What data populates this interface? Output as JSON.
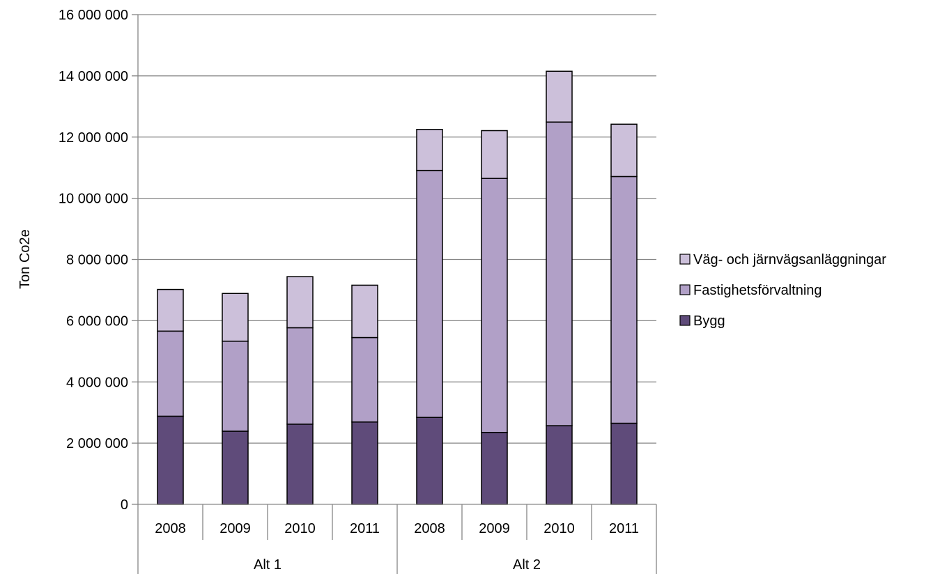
{
  "chart_data": {
    "type": "bar",
    "stacked": true,
    "ylabel": "Ton Co2e",
    "xlabel": "",
    "ylim": [
      0,
      16000000
    ],
    "yticks": [
      0,
      2000000,
      4000000,
      6000000,
      8000000,
      10000000,
      12000000,
      14000000,
      16000000
    ],
    "ytick_labels": [
      "0",
      "2 000 000",
      "4 000 000",
      "6 000 000",
      "8 000 000",
      "10 000 000",
      "12 000 000",
      "14 000 000",
      "16 000 000"
    ],
    "categories": [
      "2008",
      "2009",
      "2010",
      "2011",
      "2008",
      "2009",
      "2010",
      "2011"
    ],
    "groups": [
      {
        "label": "Alt 1",
        "count": 4
      },
      {
        "label": "Alt 2",
        "count": 4
      }
    ],
    "series": [
      {
        "name": "Bygg",
        "color": "#5f4b7a",
        "values": [
          2880000,
          2390000,
          2620000,
          2690000,
          2840000,
          2350000,
          2570000,
          2650000
        ]
      },
      {
        "name": "Fastighetsförvaltning",
        "color": "#b1a0c7",
        "values": [
          2780000,
          2940000,
          3150000,
          2760000,
          8070000,
          8300000,
          9920000,
          8060000
        ]
      },
      {
        "name": "Väg- och järnvägsanläggningar",
        "color": "#ccc0da",
        "values": [
          1360000,
          1560000,
          1670000,
          1710000,
          1340000,
          1560000,
          1660000,
          1710000
        ]
      }
    ],
    "legend_position": "right",
    "grid": true,
    "gridline_color": "#868686"
  }
}
